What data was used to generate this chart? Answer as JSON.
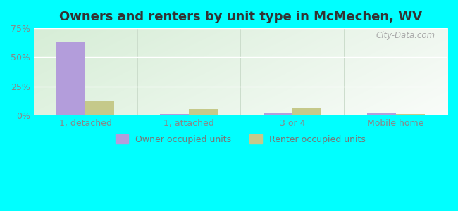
{
  "title": "Owners and renters by unit type in McMechen, WV",
  "categories": [
    "1, detached",
    "1, attached",
    "3 or 4",
    "Mobile home"
  ],
  "owner_values": [
    63.0,
    1.2,
    2.5,
    2.5
  ],
  "renter_values": [
    13.0,
    5.5,
    6.5,
    1.2
  ],
  "owner_color": "#b39ddb",
  "renter_color": "#c5c98a",
  "ylim": [
    0,
    75
  ],
  "yticks": [
    0,
    25,
    50,
    75
  ],
  "yticklabels": [
    "0%",
    "25%",
    "50%",
    "75%"
  ],
  "title_fontsize": 13,
  "legend_owner": "Owner occupied units",
  "legend_renter": "Renter occupied units",
  "figure_bg": "#00ffff",
  "watermark": "City-Data.com"
}
